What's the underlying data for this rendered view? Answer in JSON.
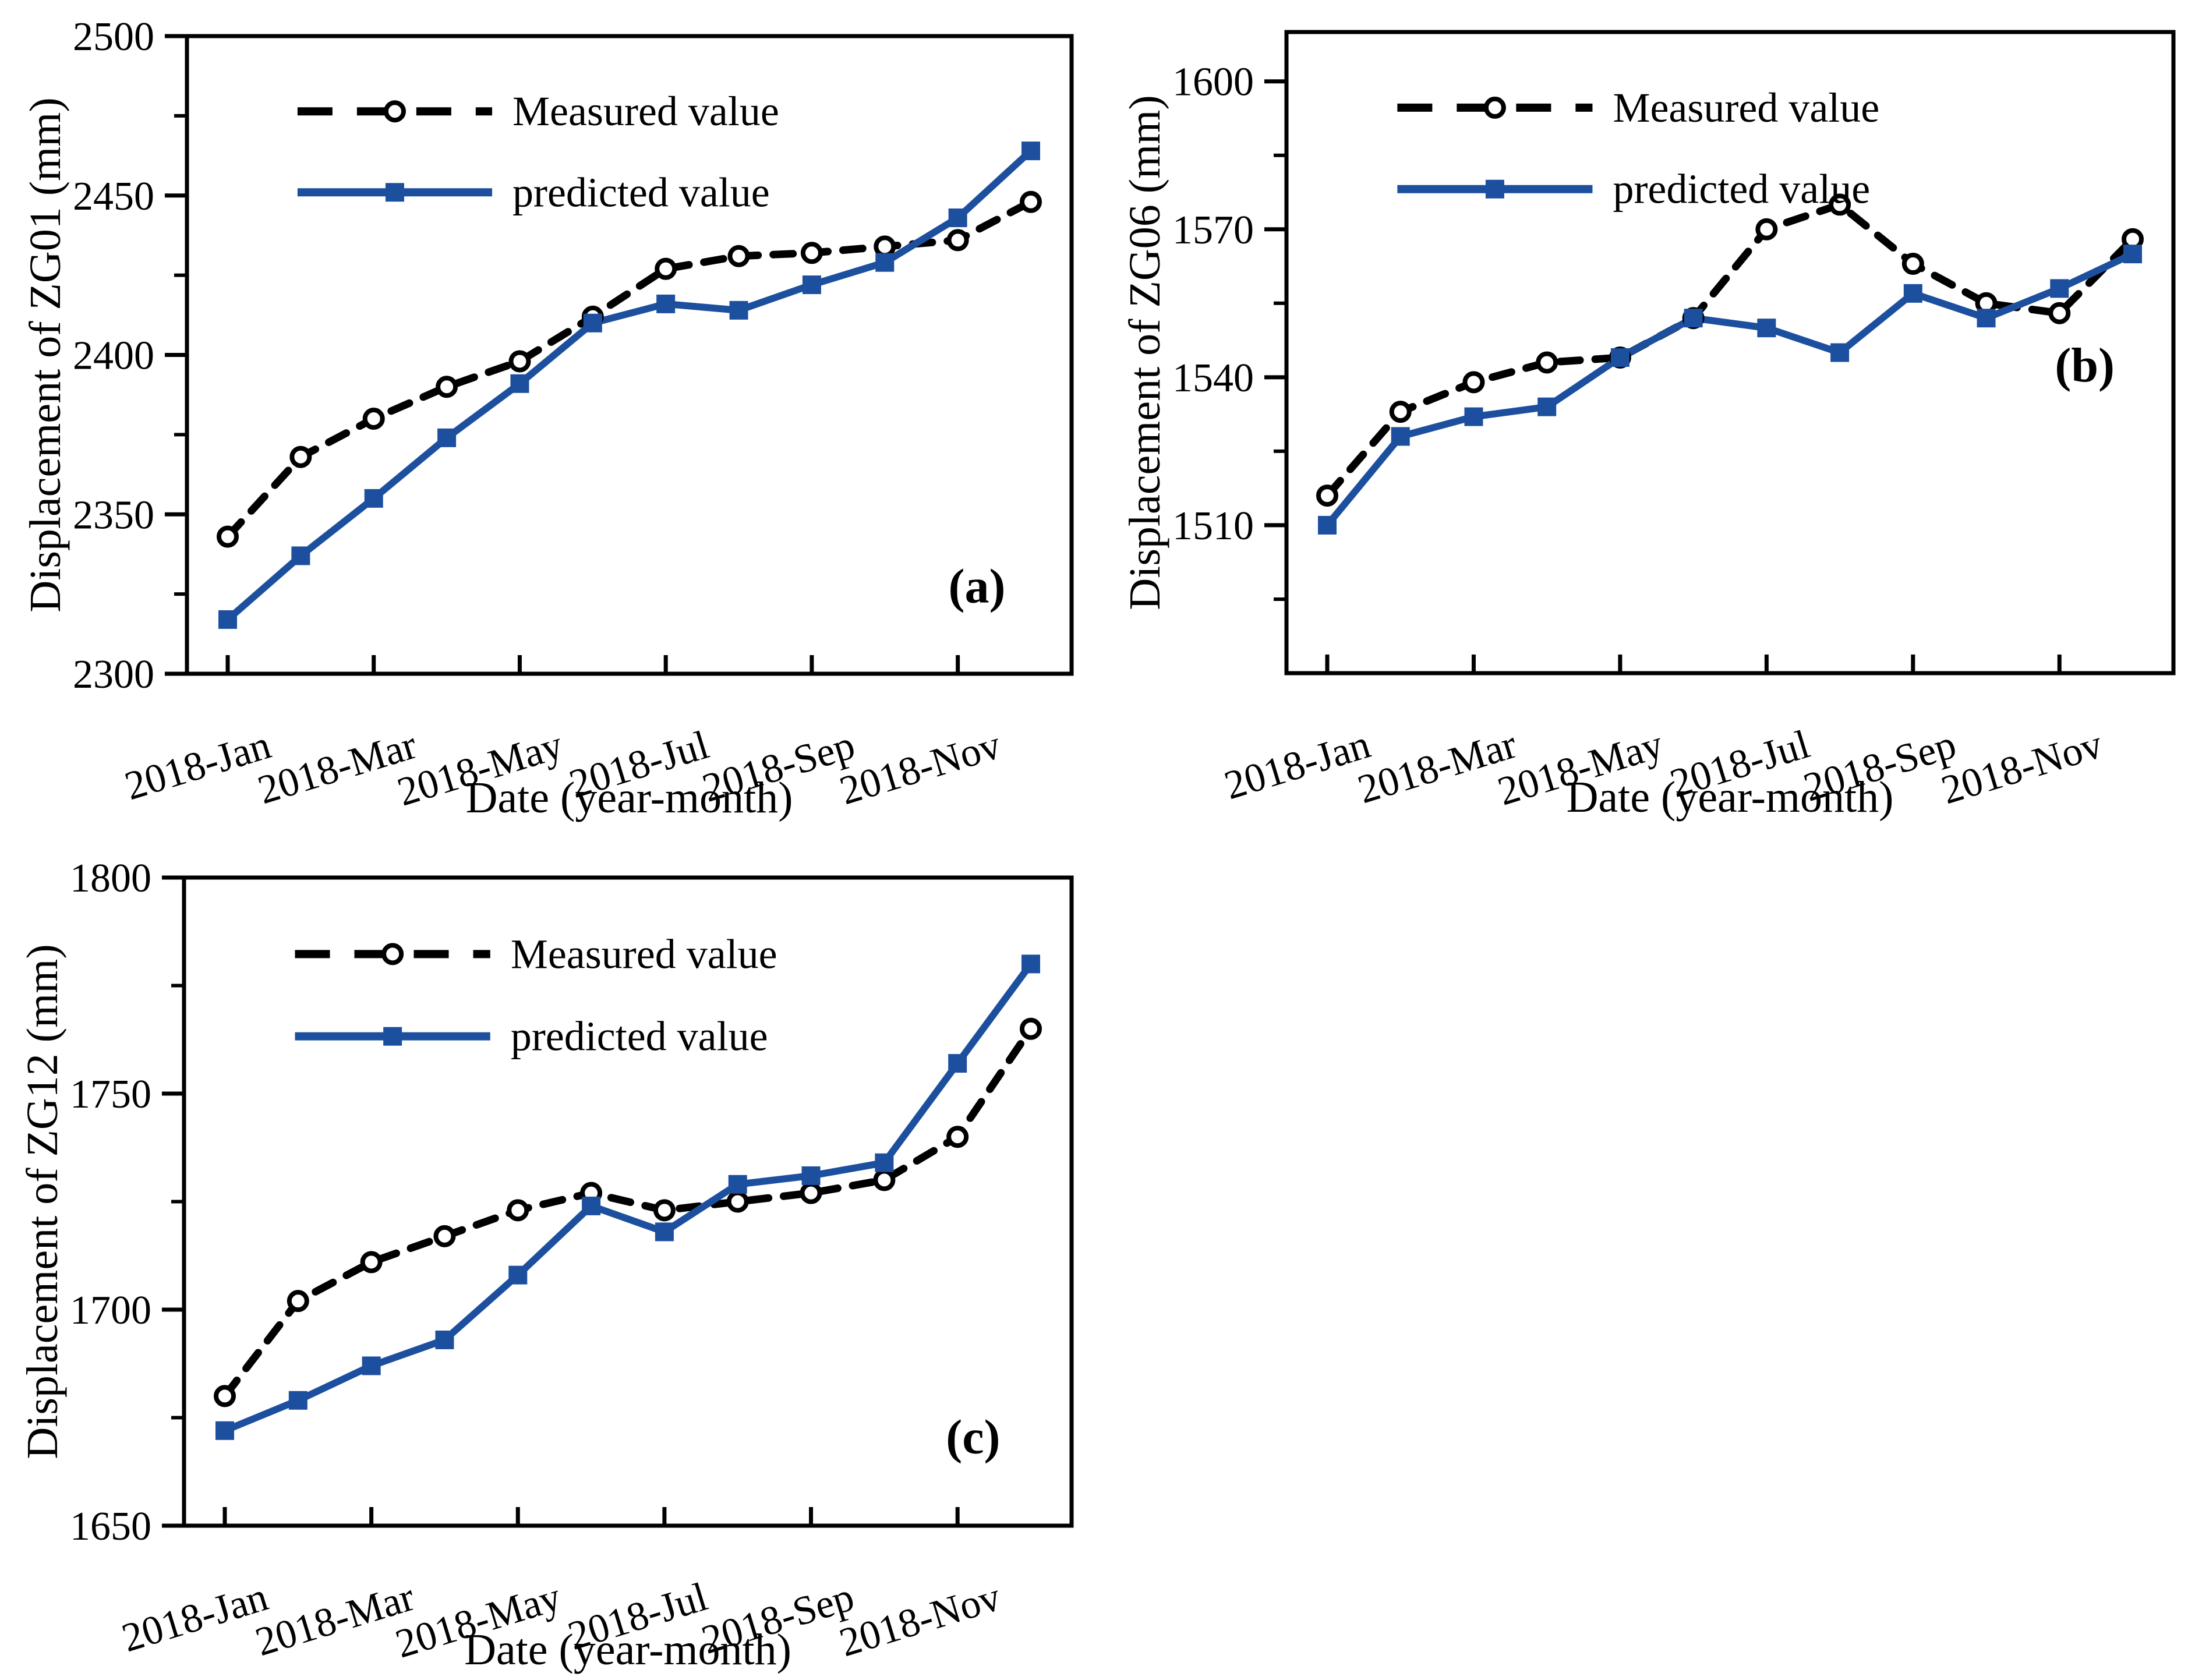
{
  "figure": {
    "background": "#ffffff",
    "measured_color": "#000000",
    "predicted_color": "#1d4f9f",
    "legend": {
      "measured_label": "Measured value",
      "predicted_label": "predicted value"
    }
  },
  "chart_data": [
    {
      "type": "line",
      "panel_label": "(a)",
      "ylabel": "Displacement of ZG01 (mm)",
      "xlabel": "Date (year-month)",
      "x": [
        "2018-Jan",
        "2018-Feb",
        "2018-Mar",
        "2018-Apr",
        "2018-May",
        "2018-Jun",
        "2018-Jul",
        "2018-Aug",
        "2018-Sep",
        "2018-Oct",
        "2018-Nov",
        "2018-Dec"
      ],
      "xtick_labels": [
        "2018-Jan",
        "2018-Mar",
        "2018-May",
        "2018-Jul",
        "2018-Sep",
        "2018-Nov"
      ],
      "xtick_month_index": [
        0,
        2,
        4,
        6,
        8,
        10
      ],
      "ylim": [
        2300,
        2500
      ],
      "yticks": [
        2300,
        2350,
        2400,
        2450,
        2500
      ],
      "yticks_minor": [
        2325,
        2375,
        2425,
        2475
      ],
      "grid": false,
      "legend_position": "top-left",
      "series": [
        {
          "name": "Measured value",
          "style": "dashed-circle",
          "color": "#000000",
          "values": [
            2343,
            2368,
            2380,
            2390,
            2398,
            2412,
            2427,
            2431,
            2432,
            2434,
            2436,
            2448
          ]
        },
        {
          "name": "predicted value",
          "style": "solid-square",
          "color": "#1d4f9f",
          "values": [
            2317,
            2337,
            2355,
            2374,
            2391,
            2410,
            2416,
            2414,
            2422,
            2429,
            2443,
            2464
          ]
        }
      ]
    },
    {
      "type": "line",
      "panel_label": "(b)",
      "ylabel": "Displacement of ZG06 (mm)",
      "xlabel": "Date (year-month)",
      "x": [
        "2018-Jan",
        "2018-Feb",
        "2018-Mar",
        "2018-Apr",
        "2018-May",
        "2018-Jun",
        "2018-Jul",
        "2018-Aug",
        "2018-Sep",
        "2018-Oct",
        "2018-Nov",
        "2018-Dec"
      ],
      "xtick_labels": [
        "2018-Jan",
        "2018-Mar",
        "2018-May",
        "2018-Jul",
        "2018-Sep",
        "2018-Nov"
      ],
      "xtick_month_index": [
        0,
        2,
        4,
        6,
        8,
        10
      ],
      "ylim": [
        1480,
        1610
      ],
      "yticks": [
        1510,
        1540,
        1570,
        1600
      ],
      "yticks_minor": [
        1495,
        1525,
        1555,
        1585
      ],
      "grid": false,
      "legend_position": "top-left",
      "series": [
        {
          "name": "Measured value",
          "style": "dashed-circle",
          "color": "#000000",
          "values": [
            1516,
            1533,
            1539,
            1543,
            1544,
            1552,
            1570,
            1575,
            1563,
            1555,
            1553,
            1568
          ]
        },
        {
          "name": "predicted value",
          "style": "solid-square",
          "color": "#1d4f9f",
          "values": [
            1510,
            1528,
            1532,
            1534,
            1544,
            1552,
            1550,
            1545,
            1557,
            1552,
            1558,
            1565
          ]
        }
      ]
    },
    {
      "type": "line",
      "panel_label": "(c)",
      "ylabel": "Displacement of ZG12 (mm)",
      "xlabel": "Date (year-month)",
      "x": [
        "2018-Jan",
        "2018-Feb",
        "2018-Mar",
        "2018-Apr",
        "2018-May",
        "2018-Jun",
        "2018-Jul",
        "2018-Aug",
        "2018-Sep",
        "2018-Oct",
        "2018-Nov",
        "2018-Dec"
      ],
      "xtick_labels": [
        "2018-Jan",
        "2018-Mar",
        "2018-May",
        "2018-Jul",
        "2018-Sep",
        "2018-Nov"
      ],
      "xtick_month_index": [
        0,
        2,
        4,
        6,
        8,
        10
      ],
      "ylim": [
        1650,
        1800
      ],
      "yticks": [
        1650,
        1700,
        1750,
        1800
      ],
      "yticks_minor": [
        1675,
        1725,
        1775
      ],
      "grid": false,
      "legend_position": "top-left",
      "series": [
        {
          "name": "Measured value",
          "style": "dashed-circle",
          "color": "#000000",
          "values": [
            1680,
            1702,
            1711,
            1717,
            1723,
            1727,
            1723,
            1725,
            1727,
            1730,
            1740,
            1765
          ]
        },
        {
          "name": "predicted value",
          "style": "solid-square",
          "color": "#1d4f9f",
          "values": [
            1672,
            1679,
            1687,
            1693,
            1708,
            1724,
            1718,
            1729,
            1731,
            1734,
            1757,
            1780
          ]
        }
      ]
    }
  ]
}
